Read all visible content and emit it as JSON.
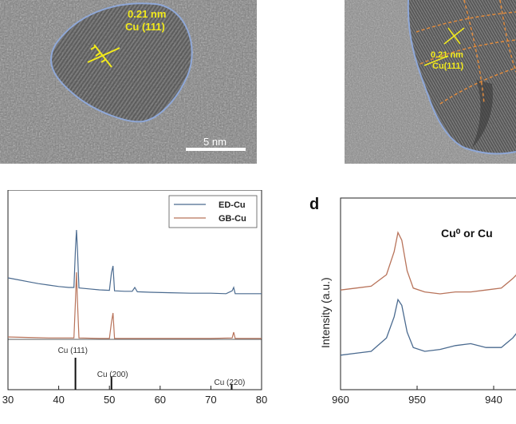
{
  "tem_left": {
    "spacing_label": "0.21 nm",
    "plane_label": "Cu (111)",
    "scale_bar_label": "5 nm"
  },
  "tem_right": {
    "spacing_label": "0.21 nm",
    "plane_label": "Cu(111)"
  },
  "panel_d_label": "d",
  "colors": {
    "ed_cu": "#4a6a8f",
    "gb_cu": "#b8735a",
    "annotation_yellow": "#f2ea1c",
    "outline_blue": "#8fa8d8",
    "grain_orange": "#e08a3c"
  },
  "chart_data": [
    {
      "type": "line",
      "title": "",
      "xlabel": "",
      "ylabel": "",
      "xlim": [
        30,
        80
      ],
      "x_ticks": [
        "30",
        "40",
        "50",
        "60",
        "70",
        "80"
      ],
      "grid": false,
      "legend_placement": "top-right",
      "series": [
        {
          "name": "ED-Cu",
          "color": "#4a6a8f",
          "points": [
            [
              30,
              0.0
            ],
            [
              32,
              -0.04
            ],
            [
              34,
              -0.08
            ],
            [
              36,
              -0.12
            ],
            [
              38,
              -0.15
            ],
            [
              40,
              -0.18
            ],
            [
              42,
              -0.2
            ],
            [
              43,
              -0.2
            ],
            [
              43.3,
              0.6
            ],
            [
              43.5,
              1.0
            ],
            [
              43.7,
              0.6
            ],
            [
              44,
              -0.21
            ],
            [
              46,
              -0.23
            ],
            [
              48,
              -0.25
            ],
            [
              50,
              -0.26
            ],
            [
              50.4,
              0.1
            ],
            [
              50.7,
              0.25
            ],
            [
              51,
              -0.27
            ],
            [
              53,
              -0.28
            ],
            [
              54.5,
              -0.28
            ],
            [
              55,
              -0.2
            ],
            [
              55.5,
              -0.29
            ],
            [
              58,
              -0.3
            ],
            [
              62,
              -0.31
            ],
            [
              66,
              -0.32
            ],
            [
              70,
              -0.32
            ],
            [
              73,
              -0.33
            ],
            [
              74.2,
              -0.27
            ],
            [
              74.5,
              -0.2
            ],
            [
              74.8,
              -0.33
            ],
            [
              77,
              -0.33
            ],
            [
              80,
              -0.33
            ]
          ]
        },
        {
          "name": "GB-Cu",
          "color": "#b8735a",
          "points": [
            [
              30,
              0.0
            ],
            [
              34,
              -0.01
            ],
            [
              38,
              -0.02
            ],
            [
              42,
              -0.02
            ],
            [
              43,
              -0.02
            ],
            [
              43.3,
              0.75
            ],
            [
              43.5,
              1.35
            ],
            [
              43.7,
              0.75
            ],
            [
              44,
              -0.02
            ],
            [
              48,
              -0.03
            ],
            [
              50,
              -0.03
            ],
            [
              50.4,
              0.3
            ],
            [
              50.7,
              0.5
            ],
            [
              51,
              -0.03
            ],
            [
              55,
              -0.03
            ],
            [
              60,
              -0.03
            ],
            [
              65,
              -0.03
            ],
            [
              70,
              -0.03
            ],
            [
              74.2,
              -0.02
            ],
            [
              74.5,
              0.1
            ],
            [
              74.8,
              -0.03
            ],
            [
              80,
              -0.03
            ]
          ]
        }
      ],
      "reference_lines": [
        {
          "label": "Cu (111)",
          "x": 43.3,
          "height": 1.0
        },
        {
          "label": "Cu (200)",
          "x": 50.4,
          "height": 0.42
        },
        {
          "label": "Cu (220)",
          "x": 74.1,
          "height": 0.18
        }
      ]
    },
    {
      "type": "line",
      "title": "",
      "xlabel": "",
      "ylabel": "Intensity (a.u.)",
      "xlim": [
        960,
        935
      ],
      "x_ticks": [
        "960",
        "950",
        "940"
      ],
      "annotation": "Cu⁰ or Cu",
      "series": [
        {
          "name": "",
          "color": "#b8735a",
          "points": [
            [
              960,
              0.52
            ],
            [
              958,
              0.53
            ],
            [
              956,
              0.54
            ],
            [
              954,
              0.6
            ],
            [
              953,
              0.72
            ],
            [
              952.5,
              0.82
            ],
            [
              952,
              0.78
            ],
            [
              951.3,
              0.62
            ],
            [
              950.5,
              0.53
            ],
            [
              949,
              0.51
            ],
            [
              947,
              0.5
            ],
            [
              945,
              0.51
            ],
            [
              943,
              0.51
            ],
            [
              941,
              0.52
            ],
            [
              939,
              0.53
            ],
            [
              937.5,
              0.58
            ],
            [
              936.5,
              0.62
            ]
          ]
        },
        {
          "name": "",
          "color": "#4a6a8f",
          "points": [
            [
              960,
              0.18
            ],
            [
              958,
              0.19
            ],
            [
              956,
              0.2
            ],
            [
              954,
              0.27
            ],
            [
              953,
              0.38
            ],
            [
              952.5,
              0.47
            ],
            [
              952,
              0.44
            ],
            [
              951.3,
              0.3
            ],
            [
              950.5,
              0.22
            ],
            [
              949,
              0.2
            ],
            [
              947,
              0.21
            ],
            [
              945,
              0.23
            ],
            [
              943,
              0.24
            ],
            [
              941,
              0.22
            ],
            [
              939,
              0.22
            ],
            [
              937.5,
              0.27
            ],
            [
              936.5,
              0.32
            ]
          ]
        }
      ]
    }
  ]
}
